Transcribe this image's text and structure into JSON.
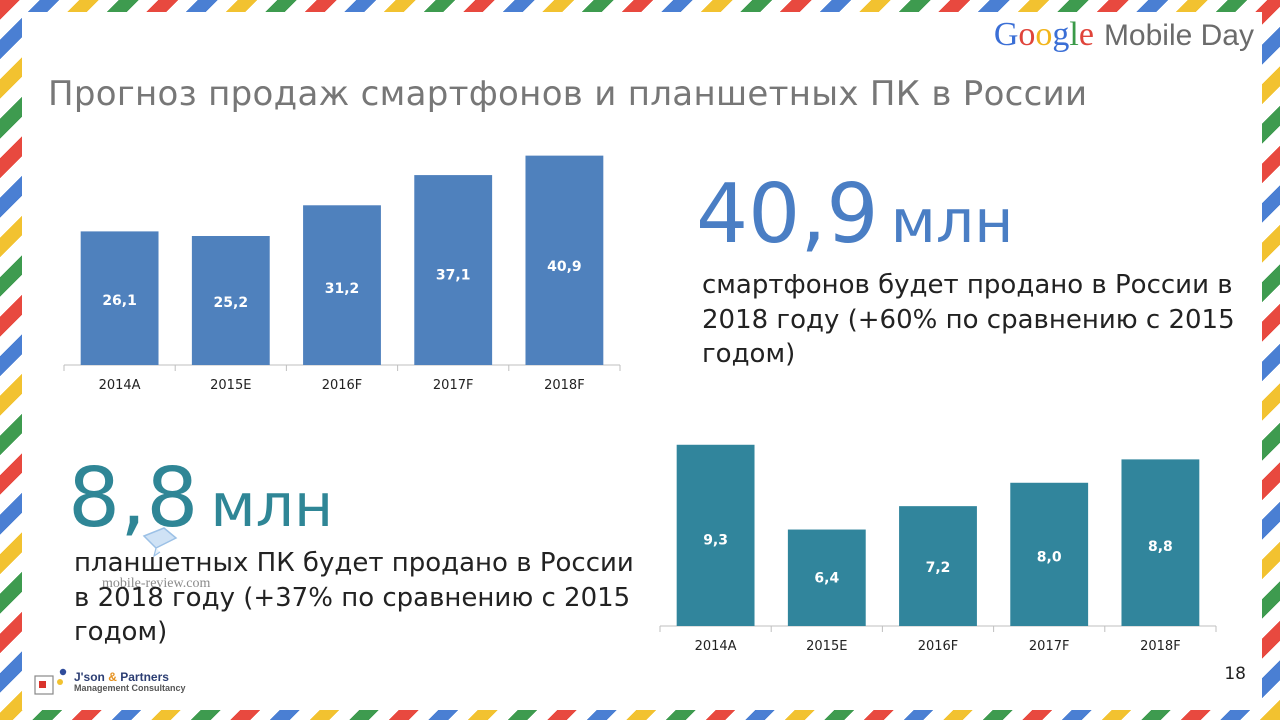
{
  "logo": {
    "google_letters": [
      {
        "ch": "G",
        "color": "#3b6fd6"
      },
      {
        "ch": "o",
        "color": "#e0443a"
      },
      {
        "ch": "o",
        "color": "#f2b51b"
      },
      {
        "ch": "g",
        "color": "#3b6fd6"
      },
      {
        "ch": "l",
        "color": "#3a9a48"
      },
      {
        "ch": "e",
        "color": "#e0443a"
      }
    ],
    "suffix": "Mobile Day"
  },
  "title": "Прогноз продаж смартфонов и планшетных ПК в России",
  "smartphones": {
    "big_number": "40,9",
    "unit": "млн",
    "description_lines": [
      "смартфонов будет продано в России в",
      "2018 году (+60% по сравнению с 2015",
      "годом)"
    ],
    "color": "#4a7ec4"
  },
  "tablets": {
    "big_number": "8,8",
    "unit": "млн",
    "description_lines": [
      "планшетных ПК будет продано в России",
      "в 2018 году (+37% по сравнению с 2015",
      "годом)"
    ],
    "color": "#2f8696"
  },
  "watermark": "mobile-review.com",
  "footer": {
    "company_line1_a": "J'son",
    "company_line1_amp": "&",
    "company_line1_b": "Partners",
    "company_line2": "Management Consultancy",
    "page_number": "18"
  },
  "chart_data": [
    {
      "type": "bar",
      "categories": [
        "2014A",
        "2015E",
        "2016F",
        "2017F",
        "2018F"
      ],
      "values": [
        26.1,
        25.2,
        31.2,
        37.1,
        40.9
      ],
      "labels": [
        "26,1",
        "25,2",
        "31,2",
        "37,1",
        "40,9"
      ],
      "ylim": [
        0,
        42
      ],
      "color": "#4f81bd"
    },
    {
      "type": "bar",
      "categories": [
        "2014A",
        "2015E",
        "2016F",
        "2017F",
        "2018F"
      ],
      "values": [
        9.3,
        6.4,
        7.2,
        8.0,
        8.8
      ],
      "labels": [
        "9,3",
        "6,4",
        "7,2",
        "8,0",
        "8,8"
      ],
      "ylim": [
        3.1,
        9.6
      ],
      "color": "#31859c"
    }
  ]
}
